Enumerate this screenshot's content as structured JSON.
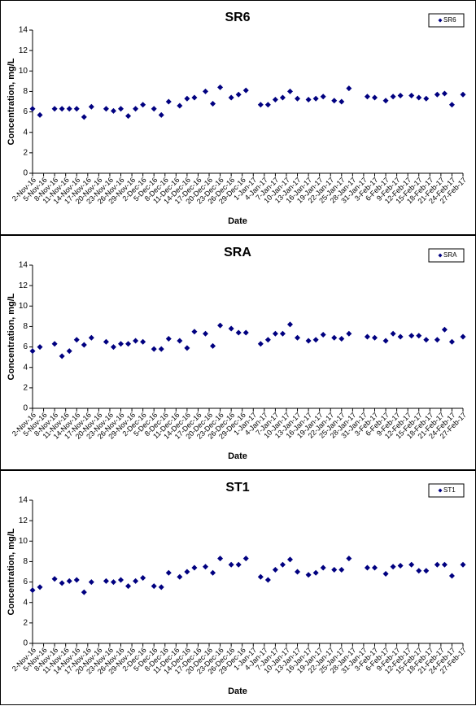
{
  "chart_data": [
    {
      "type": "scatter",
      "title": "SR6",
      "x_label": "Date",
      "y_label": "Concentration, mg/L",
      "x": [
        "2-Nov-16",
        "4-Nov-16",
        "8-Nov-16",
        "10-Nov-16",
        "12-Nov-16",
        "14-Nov-16",
        "16-Nov-16",
        "18-Nov-16",
        "22-Nov-16",
        "24-Nov-16",
        "26-Nov-16",
        "28-Nov-16",
        "30-Nov-16",
        "2-Dec-16",
        "5-Dec-16",
        "7-Dec-16",
        "9-Dec-16",
        "12-Dec-16",
        "14-Dec-16",
        "16-Dec-16",
        "19-Dec-16",
        "21-Dec-16",
        "23-Dec-16",
        "26-Dec-16",
        "28-Dec-16",
        "30-Dec-16",
        "3-Jan-17",
        "5-Jan-17",
        "7-Jan-17",
        "9-Jan-17",
        "11-Jan-17",
        "13-Jan-17",
        "16-Jan-17",
        "18-Jan-17",
        "20-Jan-17",
        "23-Jan-17",
        "25-Jan-17",
        "27-Jan-17",
        "1-Feb-17",
        "3-Feb-17",
        "6-Feb-17",
        "8-Feb-17",
        "10-Feb-17",
        "13-Feb-17",
        "15-Feb-17",
        "17-Feb-17",
        "20-Feb-17",
        "22-Feb-17",
        "24-Feb-17",
        "27-Feb-17"
      ],
      "series": [
        {
          "name": "SR6",
          "color": "#000080",
          "values": [
            6.3,
            5.7,
            6.3,
            6.3,
            6.3,
            6.3,
            5.5,
            6.5,
            6.3,
            6.1,
            6.3,
            5.6,
            6.3,
            6.7,
            6.3,
            5.7,
            7.0,
            6.6,
            7.3,
            7.4,
            8.0,
            6.8,
            8.4,
            7.4,
            7.7,
            8.1,
            6.7,
            6.7,
            7.2,
            7.4,
            8.0,
            7.3,
            7.2,
            7.3,
            7.5,
            7.1,
            7.0,
            8.3,
            7.5,
            7.4,
            7.1,
            7.5,
            7.6,
            7.6,
            7.4,
            7.3,
            7.7,
            7.8,
            6.7,
            7.7
          ]
        }
      ],
      "xlim": [
        "2-Nov-16",
        "27-Feb-17"
      ],
      "xticks": [
        "2-Nov-16",
        "5-Nov-16",
        "8-Nov-16",
        "11-Nov-16",
        "14-Nov-16",
        "17-Nov-16",
        "20-Nov-16",
        "23-Nov-16",
        "26-Nov-16",
        "29-Nov-16",
        "2-Dec-16",
        "5-Dec-16",
        "8-Dec-16",
        "11-Dec-16",
        "14-Dec-16",
        "17-Dec-16",
        "20-Dec-16",
        "23-Dec-16",
        "26-Dec-16",
        "29-Dec-16",
        "1-Jan-17",
        "4-Jan-17",
        "7-Jan-17",
        "10-Jan-17",
        "13-Jan-17",
        "16-Jan-17",
        "19-Jan-17",
        "22-Jan-17",
        "25-Jan-17",
        "28-Jan-17",
        "31-Jan-17",
        "3-Feb-17",
        "6-Feb-17",
        "9-Feb-17",
        "12-Feb-17",
        "15-Feb-17",
        "18-Feb-17",
        "21-Feb-17",
        "24-Feb-17",
        "27-Feb-17"
      ],
      "ylim": [
        0,
        14
      ],
      "yticks": [
        0,
        2,
        4,
        6,
        8,
        10,
        12,
        14
      ],
      "legend": "top-right"
    },
    {
      "type": "scatter",
      "title": "SRA",
      "x_label": "Date",
      "y_label": "Concentration, mg/L",
      "x": [
        "2-Nov-16",
        "4-Nov-16",
        "8-Nov-16",
        "10-Nov-16",
        "12-Nov-16",
        "14-Nov-16",
        "16-Nov-16",
        "18-Nov-16",
        "22-Nov-16",
        "24-Nov-16",
        "26-Nov-16",
        "28-Nov-16",
        "30-Nov-16",
        "2-Dec-16",
        "5-Dec-16",
        "7-Dec-16",
        "9-Dec-16",
        "12-Dec-16",
        "14-Dec-16",
        "16-Dec-16",
        "19-Dec-16",
        "21-Dec-16",
        "23-Dec-16",
        "26-Dec-16",
        "28-Dec-16",
        "30-Dec-16",
        "3-Jan-17",
        "5-Jan-17",
        "7-Jan-17",
        "9-Jan-17",
        "11-Jan-17",
        "13-Jan-17",
        "16-Jan-17",
        "18-Jan-17",
        "20-Jan-17",
        "23-Jan-17",
        "25-Jan-17",
        "27-Jan-17",
        "1-Feb-17",
        "3-Feb-17",
        "6-Feb-17",
        "8-Feb-17",
        "10-Feb-17",
        "13-Feb-17",
        "15-Feb-17",
        "17-Feb-17",
        "20-Feb-17",
        "22-Feb-17",
        "24-Feb-17",
        "27-Feb-17"
      ],
      "series": [
        {
          "name": "SRA",
          "color": "#000080",
          "values": [
            5.6,
            6.0,
            6.3,
            5.1,
            5.6,
            6.7,
            6.2,
            6.9,
            6.5,
            6.0,
            6.3,
            6.3,
            6.6,
            6.5,
            5.8,
            5.8,
            6.8,
            6.6,
            5.9,
            7.5,
            7.3,
            6.1,
            8.1,
            7.8,
            7.4,
            7.4,
            6.3,
            6.7,
            7.3,
            7.3,
            8.2,
            6.9,
            6.6,
            6.7,
            7.2,
            6.9,
            6.8,
            7.3,
            7.0,
            6.9,
            6.6,
            7.3,
            7.0,
            7.1,
            7.1,
            6.7,
            6.7,
            7.7,
            6.5,
            7.0
          ]
        }
      ],
      "xlim": [
        "2-Nov-16",
        "27-Feb-17"
      ],
      "xticks": [
        "2-Nov-16",
        "5-Nov-16",
        "8-Nov-16",
        "11-Nov-16",
        "14-Nov-16",
        "17-Nov-16",
        "20-Nov-16",
        "23-Nov-16",
        "26-Nov-16",
        "29-Nov-16",
        "2-Dec-16",
        "5-Dec-16",
        "8-Dec-16",
        "11-Dec-16",
        "14-Dec-16",
        "17-Dec-16",
        "20-Dec-16",
        "23-Dec-16",
        "26-Dec-16",
        "29-Dec-16",
        "1-Jan-17",
        "4-Jan-17",
        "7-Jan-17",
        "10-Jan-17",
        "13-Jan-17",
        "16-Jan-17",
        "19-Jan-17",
        "22-Jan-17",
        "25-Jan-17",
        "28-Jan-17",
        "31-Jan-17",
        "3-Feb-17",
        "6-Feb-17",
        "9-Feb-17",
        "12-Feb-17",
        "15-Feb-17",
        "18-Feb-17",
        "21-Feb-17",
        "24-Feb-17",
        "27-Feb-17"
      ],
      "ylim": [
        0,
        14
      ],
      "yticks": [
        0,
        2,
        4,
        6,
        8,
        10,
        12,
        14
      ],
      "legend": "top-right"
    },
    {
      "type": "scatter",
      "title": "ST1",
      "x_label": "Date",
      "y_label": "Concentration, mg/L",
      "x": [
        "2-Nov-16",
        "4-Nov-16",
        "8-Nov-16",
        "10-Nov-16",
        "12-Nov-16",
        "14-Nov-16",
        "16-Nov-16",
        "18-Nov-16",
        "22-Nov-16",
        "24-Nov-16",
        "26-Nov-16",
        "28-Nov-16",
        "30-Nov-16",
        "2-Dec-16",
        "5-Dec-16",
        "7-Dec-16",
        "9-Dec-16",
        "12-Dec-16",
        "14-Dec-16",
        "16-Dec-16",
        "19-Dec-16",
        "21-Dec-16",
        "23-Dec-16",
        "26-Dec-16",
        "28-Dec-16",
        "30-Dec-16",
        "3-Jan-17",
        "5-Jan-17",
        "7-Jan-17",
        "9-Jan-17",
        "11-Jan-17",
        "13-Jan-17",
        "16-Jan-17",
        "18-Jan-17",
        "20-Jan-17",
        "23-Jan-17",
        "25-Jan-17",
        "27-Jan-17",
        "1-Feb-17",
        "3-Feb-17",
        "6-Feb-17",
        "8-Feb-17",
        "10-Feb-17",
        "13-Feb-17",
        "15-Feb-17",
        "17-Feb-17",
        "20-Feb-17",
        "22-Feb-17",
        "24-Feb-17",
        "27-Feb-17"
      ],
      "series": [
        {
          "name": "ST1",
          "color": "#000080",
          "values": [
            5.2,
            5.5,
            6.3,
            5.9,
            6.1,
            6.2,
            5.0,
            6.0,
            6.1,
            6.0,
            6.2,
            5.6,
            6.1,
            6.4,
            5.6,
            5.5,
            6.9,
            6.5,
            7.0,
            7.4,
            7.5,
            6.9,
            8.3,
            7.7,
            7.7,
            8.3,
            6.5,
            6.2,
            7.2,
            7.7,
            8.2,
            7.0,
            6.7,
            6.9,
            7.4,
            7.2,
            7.2,
            8.3,
            7.4,
            7.4,
            6.8,
            7.5,
            7.6,
            7.7,
            7.1,
            7.1,
            7.7,
            7.7,
            6.6,
            7.7
          ]
        }
      ],
      "xlim": [
        "2-Nov-16",
        "27-Feb-17"
      ],
      "xticks": [
        "2-Nov-16",
        "5-Nov-16",
        "8-Nov-16",
        "11-Nov-16",
        "14-Nov-16",
        "17-Nov-16",
        "20-Nov-16",
        "23-Nov-16",
        "26-Nov-16",
        "29-Nov-16",
        "2-Dec-16",
        "5-Dec-16",
        "8-Dec-16",
        "11-Dec-16",
        "14-Dec-16",
        "17-Dec-16",
        "20-Dec-16",
        "23-Dec-16",
        "26-Dec-16",
        "29-Dec-16",
        "1-Jan-17",
        "4-Jan-17",
        "7-Jan-17",
        "10-Jan-17",
        "13-Jan-17",
        "16-Jan-17",
        "19-Jan-17",
        "22-Jan-17",
        "25-Jan-17",
        "28-Jan-17",
        "31-Jan-17",
        "3-Feb-17",
        "6-Feb-17",
        "9-Feb-17",
        "12-Feb-17",
        "15-Feb-17",
        "18-Feb-17",
        "21-Feb-17",
        "24-Feb-17",
        "27-Feb-17"
      ],
      "ylim": [
        0,
        14
      ],
      "yticks": [
        0,
        2,
        4,
        6,
        8,
        10,
        12,
        14
      ],
      "legend": "top-right"
    }
  ]
}
